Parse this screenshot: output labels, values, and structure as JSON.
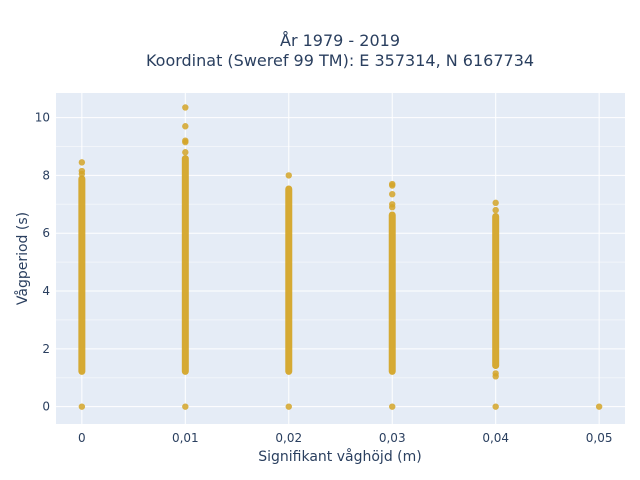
{
  "chart_data": {
    "type": "scatter",
    "title_line1": "År 1979 - 2019",
    "title_line2": "Koordinat (Sweref 99 TM): E 357314, N 6167734",
    "xlabel": "Signifikant våghöjd (m)",
    "ylabel": "Vågperiod (s)",
    "xlim": [
      -0.0025,
      0.0525
    ],
    "ylim": [
      -0.6,
      10.85
    ],
    "x_ticks": [
      {
        "value": 0,
        "label": "0"
      },
      {
        "value": 0.01,
        "label": "0,01"
      },
      {
        "value": 0.02,
        "label": "0,02"
      },
      {
        "value": 0.03,
        "label": "0,03"
      },
      {
        "value": 0.04,
        "label": "0,04"
      },
      {
        "value": 0.05,
        "label": "0,05"
      }
    ],
    "y_ticks": [
      {
        "value": 0,
        "label": "0"
      },
      {
        "value": 2,
        "label": "2"
      },
      {
        "value": 4,
        "label": "4"
      },
      {
        "value": 6,
        "label": "6"
      },
      {
        "value": 8,
        "label": "8"
      },
      {
        "value": 10,
        "label": "10"
      }
    ],
    "marker_color": "#d4a528",
    "plot_bg": "#e5ecf6",
    "grid": true,
    "columns": [
      {
        "x": 0,
        "band": [
          1.1,
          8.0
        ],
        "points": [
          0,
          8.05,
          8.15,
          8.45
        ]
      },
      {
        "x": 0.01,
        "band": [
          1.1,
          8.7
        ],
        "points": [
          0,
          8.8,
          9.15,
          9.2,
          9.7,
          10.35
        ]
      },
      {
        "x": 0.02,
        "band": [
          1.1,
          7.65
        ],
        "points": [
          0,
          8.0
        ]
      },
      {
        "x": 0.03,
        "band": [
          1.1,
          6.75
        ],
        "points": [
          0,
          6.9,
          7.0,
          7.35,
          7.65,
          7.7
        ]
      },
      {
        "x": 0.04,
        "band": [
          1.3,
          6.7
        ],
        "points": [
          0,
          1.05,
          1.15,
          6.8,
          7.05
        ]
      },
      {
        "x": 0.05,
        "band": null,
        "points": [
          0
        ]
      }
    ]
  }
}
